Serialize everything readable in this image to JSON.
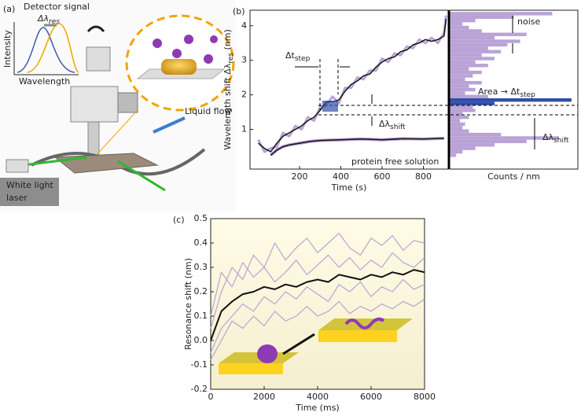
{
  "illustration": {
    "label": "(a)",
    "detector": "Detector signal",
    "delta": "Δλ",
    "delta_sub": "res",
    "intensity": "Intensity",
    "wavelength": "Wavelength",
    "flow": "Liquid flow",
    "laser_1": "White light",
    "laser_2": "laser"
  },
  "chart_data": [
    {
      "type": "line",
      "panel_label": "(b)",
      "x_label": "Time (s)",
      "y_label": "Wavelength shift Δλ",
      "y_label_sub": "res",
      "y_label_unit": " (nm)",
      "xlim": [
        -40,
        920
      ],
      "ylim": [
        -0.15,
        4.45
      ],
      "xticks": [
        200,
        400,
        600,
        800
      ],
      "yticks": [
        1,
        2,
        3,
        4
      ],
      "series": [
        {
          "color": "#b9a3d6",
          "width": 3,
          "x": [
            0,
            30,
            60,
            90,
            120,
            150,
            180,
            210,
            240,
            270,
            300,
            330,
            360,
            390,
            420,
            450,
            480,
            510,
            540,
            570,
            600,
            630,
            660,
            690,
            720,
            750,
            780,
            810,
            840,
            870,
            900,
            910
          ],
          "values": [
            0.7,
            0.35,
            0.45,
            0.5,
            0.9,
            0.8,
            1.1,
            1.0,
            1.35,
            1.25,
            1.65,
            1.7,
            1.95,
            1.75,
            2.2,
            2.2,
            2.5,
            2.45,
            2.7,
            2.7,
            3.05,
            2.95,
            3.2,
            3.15,
            3.4,
            3.35,
            3.6,
            3.5,
            3.65,
            3.5,
            3.8,
            4.3
          ]
        },
        {
          "color": "#111111",
          "width": 1.5,
          "x": [
            0,
            30,
            60,
            90,
            120,
            150,
            180,
            210,
            240,
            270,
            300,
            330,
            360,
            390,
            420,
            450,
            480,
            510,
            540,
            570,
            600,
            630,
            660,
            690,
            720,
            750,
            780,
            810,
            840,
            870,
            900,
            910
          ],
          "values": [
            0.6,
            0.45,
            0.35,
            0.6,
            0.8,
            0.9,
            1.0,
            1.1,
            1.25,
            1.35,
            1.55,
            1.8,
            1.8,
            1.85,
            2.1,
            2.3,
            2.4,
            2.55,
            2.6,
            2.8,
            2.95,
            3.05,
            3.1,
            3.25,
            3.3,
            3.45,
            3.5,
            3.6,
            3.55,
            3.6,
            3.7,
            4.2
          ]
        },
        {
          "color": "#b9a3d6",
          "width": 4,
          "x": [
            60,
            90,
            120,
            150,
            200,
            250,
            300,
            400,
            500,
            600,
            700,
            800,
            900
          ],
          "values": [
            0.25,
            0.4,
            0.5,
            0.55,
            0.6,
            0.65,
            0.68,
            0.7,
            0.72,
            0.7,
            0.73,
            0.72,
            0.74
          ]
        },
        {
          "color": "#111111",
          "width": 1.5,
          "x": [
            60,
            90,
            120,
            150,
            200,
            250,
            300,
            400,
            500,
            600,
            700,
            800,
            900
          ],
          "values": [
            0.25,
            0.4,
            0.5,
            0.55,
            0.6,
            0.65,
            0.68,
            0.7,
            0.72,
            0.7,
            0.73,
            0.72,
            0.74
          ]
        }
      ],
      "annotations": {
        "delta_t": "Δt",
        "step": "step",
        "delta_l": "Δλ",
        "shift": "shift",
        "noise": "noise",
        "area": "Area → Δt",
        "protein_free": "protein free solution"
      }
    },
    {
      "type": "histogram",
      "x_label": "Counts / nm",
      "xlim": [
        0,
        100
      ],
      "ylim": [
        -0.15,
        4.45
      ],
      "color": "#b9a3d6",
      "bins": [
        0.2,
        0.3,
        0.4,
        0.5,
        0.6,
        0.7,
        0.8,
        0.9,
        1.0,
        1.1,
        1.2,
        1.3,
        1.4,
        1.5,
        1.6,
        1.7,
        1.8,
        1.9,
        2.0,
        2.1,
        2.2,
        2.3,
        2.4,
        2.5,
        2.6,
        2.7,
        2.8,
        2.9,
        3.0,
        3.1,
        3.2,
        3.3,
        3.4,
        3.5,
        3.6,
        3.7,
        3.8,
        3.9,
        4.0,
        4.1,
        4.2,
        4.3,
        4.4
      ],
      "counts": [
        5,
        10,
        20,
        35,
        60,
        85,
        40,
        15,
        10,
        12,
        8,
        15,
        10,
        20,
        18,
        35,
        95,
        30,
        12,
        20,
        15,
        25,
        12,
        18,
        25,
        15,
        30,
        20,
        35,
        25,
        40,
        30,
        45,
        55,
        35,
        60,
        25,
        15,
        10,
        20,
        50,
        80
      ],
      "bar_colors": [
        "#b9a3d6",
        "#b9a3d6",
        "#b9a3d6",
        "#b9a3d6",
        "#b9a3d6",
        "#b9a3d6",
        "#b9a3d6",
        "#b9a3d6",
        "#b9a3d6",
        "#b9a3d6",
        "#b9a3d6",
        "#b9a3d6",
        "#b9a3d6",
        "#b9a3d6",
        "#b9a3d6",
        "#2f4fa8",
        "#2f4fa8",
        "#b9a3d6",
        "#b9a3d6",
        "#b9a3d6",
        "#b9a3d6",
        "#b9a3d6",
        "#b9a3d6",
        "#b9a3d6",
        "#b9a3d6",
        "#b9a3d6",
        "#b9a3d6",
        "#b9a3d6",
        "#b9a3d6",
        "#b9a3d6",
        "#b9a3d6",
        "#b9a3d6",
        "#b9a3d6",
        "#b9a3d6",
        "#b9a3d6",
        "#b9a3d6",
        "#b9a3d6",
        "#b9a3d6",
        "#b9a3d6",
        "#b9a3d6",
        "#b9a3d6",
        "#b9a3d6"
      ]
    },
    {
      "type": "line",
      "panel_label": "(c)",
      "x_label": "Time (ms)",
      "y_label": "Resonance shift (nm)",
      "xlim": [
        0,
        8000
      ],
      "ylim": [
        -0.2,
        0.5
      ],
      "xticks": [
        0,
        2000,
        4000,
        6000,
        8000
      ],
      "yticks": [
        -0.2,
        -0.1,
        {
          "value": 0,
          "label": "0.0"
        },
        0.1,
        0.2,
        0.3,
        0.4,
        0.5
      ],
      "series": [
        {
          "color": "#b9a3d6",
          "width": 1.2,
          "x": [
            0,
            400,
            800,
            1200,
            1600,
            2000,
            2400,
            2800,
            3200,
            3600,
            4000,
            4400,
            4800,
            5200,
            5600,
            6000,
            6400,
            6800,
            7200,
            7600,
            8000
          ],
          "values": [
            0.05,
            0.2,
            0.3,
            0.25,
            0.35,
            0.3,
            0.4,
            0.33,
            0.38,
            0.42,
            0.36,
            0.4,
            0.44,
            0.38,
            0.35,
            0.42,
            0.39,
            0.43,
            0.37,
            0.41,
            0.4
          ]
        },
        {
          "color": "#b9a3d6",
          "width": 1.2,
          "x": [
            0,
            400,
            800,
            1200,
            1600,
            2000,
            2400,
            2800,
            3200,
            3600,
            4000,
            4400,
            4800,
            5200,
            5600,
            6000,
            6400,
            6800,
            7200,
            7600,
            8000
          ],
          "values": [
            -0.05,
            0.05,
            0.1,
            0.15,
            0.12,
            0.18,
            0.15,
            0.2,
            0.17,
            0.22,
            0.19,
            0.16,
            0.23,
            0.2,
            0.24,
            0.18,
            0.22,
            0.2,
            0.25,
            0.21,
            0.23
          ]
        },
        {
          "color": "#b9a3d6",
          "width": 1.2,
          "x": [
            0,
            400,
            800,
            1200,
            1600,
            2000,
            2400,
            2800,
            3200,
            3600,
            4000,
            4400,
            4800,
            5200,
            5600,
            6000,
            6400,
            6800,
            7200,
            7600,
            8000
          ],
          "values": [
            0.1,
            0.28,
            0.22,
            0.32,
            0.26,
            0.3,
            0.24,
            0.28,
            0.33,
            0.27,
            0.31,
            0.35,
            0.3,
            0.34,
            0.29,
            0.33,
            0.3,
            0.36,
            0.32,
            0.3,
            0.34
          ]
        },
        {
          "color": "#b9a3d6",
          "width": 1.2,
          "x": [
            0,
            400,
            800,
            1200,
            1600,
            2000,
            2400,
            2800,
            3200,
            3600,
            4000,
            4400,
            4800,
            5200,
            5600,
            6000,
            6400,
            6800,
            7200,
            7600,
            8000
          ],
          "values": [
            -0.08,
            0.0,
            0.08,
            0.05,
            0.1,
            0.06,
            0.12,
            0.08,
            0.1,
            0.14,
            0.1,
            0.12,
            0.16,
            0.11,
            0.14,
            0.12,
            0.15,
            0.13,
            0.16,
            0.14,
            0.17
          ]
        },
        {
          "color": "#111111",
          "width": 2,
          "x": [
            0,
            400,
            800,
            1200,
            1600,
            2000,
            2400,
            2800,
            3200,
            3600,
            4000,
            4400,
            4800,
            5200,
            5600,
            6000,
            6400,
            6800,
            7200,
            7600,
            8000
          ],
          "values": [
            0.0,
            0.12,
            0.16,
            0.19,
            0.2,
            0.22,
            0.21,
            0.23,
            0.22,
            0.24,
            0.25,
            0.24,
            0.27,
            0.26,
            0.25,
            0.27,
            0.26,
            0.28,
            0.27,
            0.29,
            0.28
          ]
        }
      ]
    }
  ]
}
